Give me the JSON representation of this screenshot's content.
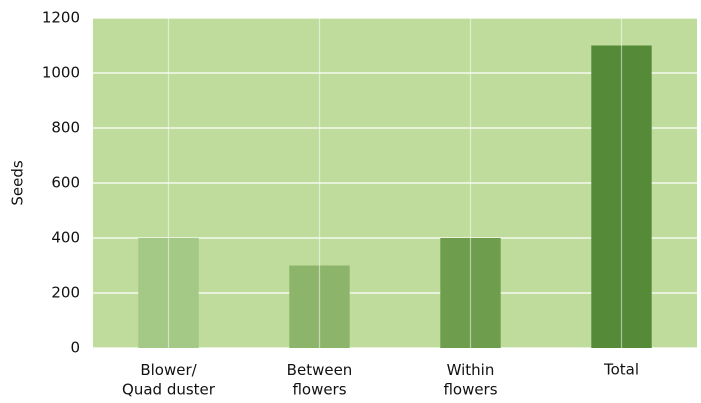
{
  "chart_data": {
    "type": "bar",
    "ylabel": "Seeds",
    "categories": [
      "Blower/\nQuad duster",
      "Between\nflowers",
      "Within\nflowers",
      "Total"
    ],
    "values": [
      400,
      300,
      400,
      1100
    ],
    "colors": [
      "#a4c886",
      "#8cb46a",
      "#6e9d4e",
      "#558a38"
    ],
    "background": "#bfdc9c",
    "ylim": [
      0,
      1200
    ],
    "yticks": [
      0,
      200,
      400,
      600,
      800,
      1000,
      1200
    ],
    "grid": true
  }
}
